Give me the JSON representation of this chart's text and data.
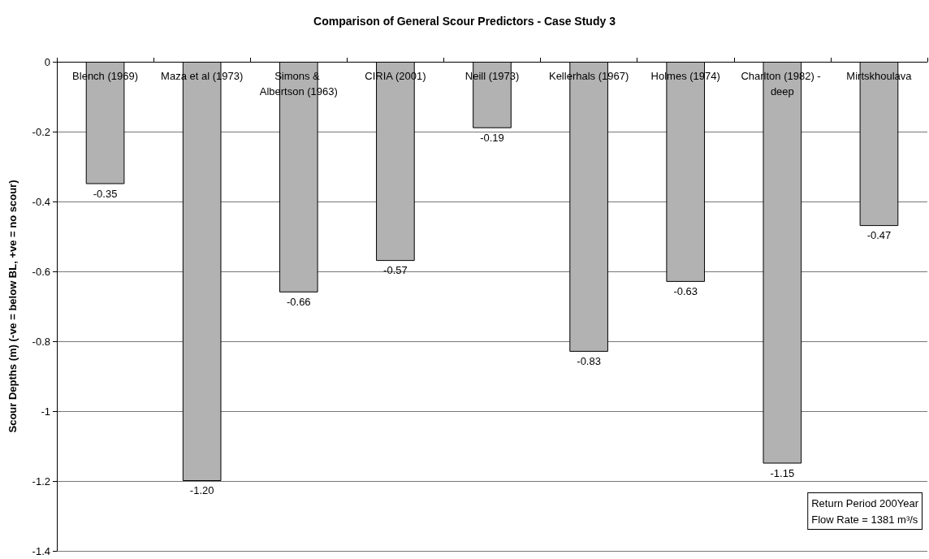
{
  "chart_data": {
    "type": "bar",
    "title": "Comparison of General Scour Predictors - Case Study 3",
    "ylabel": "Scour Depths (m) (-ve = below BL, +ve = no scour)",
    "categories": [
      "Blench (1969)",
      "Maza et al (1973)",
      "Simons & Albertson (1963)",
      "CIRIA (2001)",
      "Neill (1973)",
      "Kellerhals (1967)",
      "Holmes (1974)",
      "Charlton (1982) - deep",
      "Mirtskhoulava"
    ],
    "values": [
      -0.35,
      -1.2,
      -0.66,
      -0.57,
      -0.19,
      -0.83,
      -0.63,
      -1.15,
      -0.47
    ],
    "value_labels": [
      "-0.35",
      "-1.20",
      "-0.66",
      "-0.57",
      "-0.19",
      "-0.83",
      "-0.63",
      "-1.15",
      "-0.47"
    ],
    "color": "#b2b2b2",
    "ylim": [
      -1.4,
      0
    ],
    "yticks": [
      0,
      -0.2,
      -0.4,
      -0.6,
      -0.8,
      -1,
      -1.2,
      -1.4
    ],
    "grid": "y",
    "annotations": [
      "Return Period 200Year",
      "Flow Rate = 1381 m³/s"
    ]
  }
}
